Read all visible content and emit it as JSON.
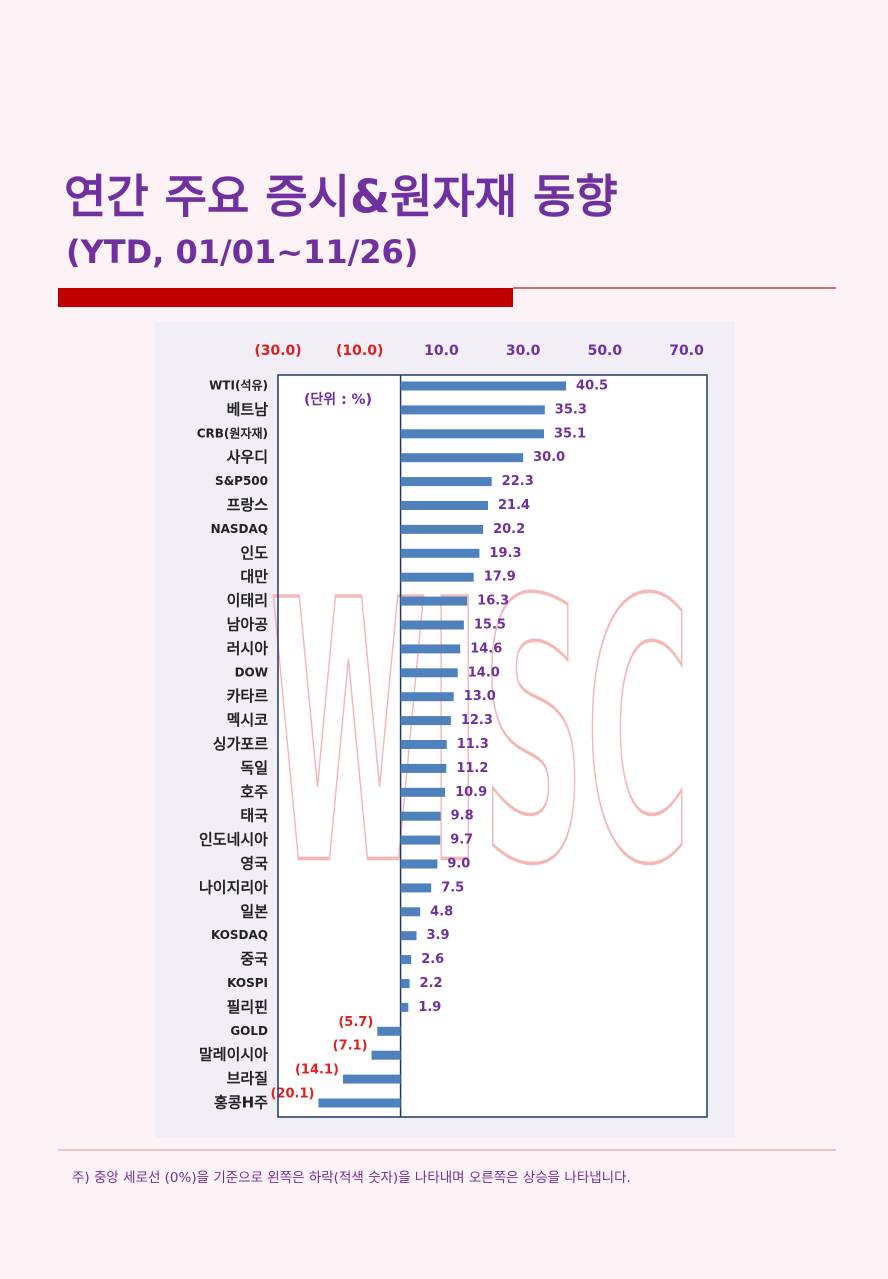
{
  "chart_data": {
    "type": "bar",
    "orientation": "horizontal",
    "title": "연간 주요 증시&원자재 동향",
    "subtitle": "(YTD, 01/01~11/26)",
    "unit_label": "(단위 : %)",
    "watermark": "WISC",
    "note": "주) 중앙 세로선 (0%)을 기준으로 왼쪽은 하락(적색 숫자)을 나타내며 오른쪽은 상승을 나타냅니다.",
    "categories": [
      "WTI(석유)",
      "베트남",
      "CRB(원자재)",
      "사우디",
      "S&P500",
      "프랑스",
      "NASDAQ",
      "인도",
      "대만",
      "이태리",
      "남아공",
      "러시아",
      "DOW",
      "카타르",
      "멕시코",
      "싱가포르",
      "독일",
      "호주",
      "태국",
      "인도네시아",
      "영국",
      "나이지리아",
      "일본",
      "KOSDAQ",
      "중국",
      "KOSPI",
      "필리핀",
      "GOLD",
      "말레이시아",
      "브라질",
      "홍콩H주"
    ],
    "values": [
      40.5,
      35.3,
      35.1,
      30.0,
      22.3,
      21.4,
      20.2,
      19.3,
      17.9,
      16.3,
      15.5,
      14.6,
      14.0,
      13.0,
      12.3,
      11.3,
      11.2,
      10.9,
      9.8,
      9.7,
      9.0,
      7.5,
      4.8,
      3.9,
      2.6,
      2.2,
      1.9,
      -5.7,
      -7.1,
      -14.1,
      -20.1
    ],
    "value_labels": [
      "40.5",
      "35.3",
      "35.1",
      "30.0",
      "22.3",
      "21.4",
      "20.2",
      "19.3",
      "17.9",
      "16.3",
      "15.5",
      "14.6",
      "14.0",
      "13.0",
      "12.3",
      "11.3",
      "11.2",
      "10.9",
      "9.8",
      "9.7",
      "9.0",
      "7.5",
      "4.8",
      "3.9",
      "2.6",
      "2.2",
      "1.9",
      "(5.7)",
      "(7.1)",
      "(14.1)",
      "(20.1)"
    ],
    "color": "#4f81bd",
    "positive_label_color": "#7030a0",
    "negative_label_color": "#e02020",
    "xlim": [
      -30,
      75
    ],
    "xticks": [
      {
        "value": -30,
        "label": "(30.0)"
      },
      {
        "value": -10,
        "label": "(10.0)"
      },
      {
        "value": 10,
        "label": "10.0"
      },
      {
        "value": 30,
        "label": "30.0"
      },
      {
        "value": 50,
        "label": "50.0"
      },
      {
        "value": 70,
        "label": "70.0"
      }
    ]
  }
}
